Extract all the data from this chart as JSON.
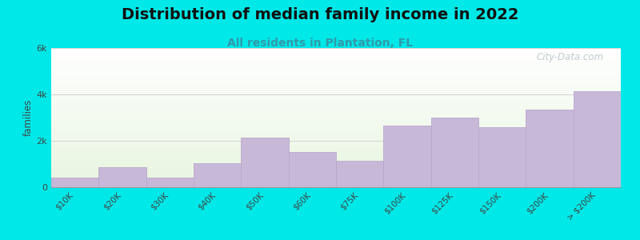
{
  "title": "Distribution of median family income in 2022",
  "subtitle": "All residents in Plantation, FL",
  "ylabel": "families",
  "background_color": "#00e8e8",
  "plot_bg_top": "#e8f5e0",
  "plot_bg_bottom": "#ffffff",
  "bar_color": "#c8b8d8",
  "bar_edge_color": "#b8a8cc",
  "categories": [
    "$10K",
    "$20K",
    "$30K",
    "$40K",
    "$50K",
    "$60K",
    "$75K",
    "$100K",
    "$125K",
    "$150K",
    "$200K",
    "> $200K"
  ],
  "values": [
    420,
    850,
    400,
    1050,
    2150,
    1520,
    1150,
    2650,
    3000,
    2600,
    3350,
    4150
  ],
  "ylim": [
    0,
    6000
  ],
  "ytick_labels": [
    "0",
    "2k",
    "4k",
    "6k"
  ],
  "ytick_values": [
    0,
    2000,
    4000,
    6000
  ],
  "watermark": "City-Data.com",
  "title_fontsize": 14,
  "subtitle_fontsize": 10,
  "subtitle_color": "#3399aa",
  "bar_width": 1.0
}
